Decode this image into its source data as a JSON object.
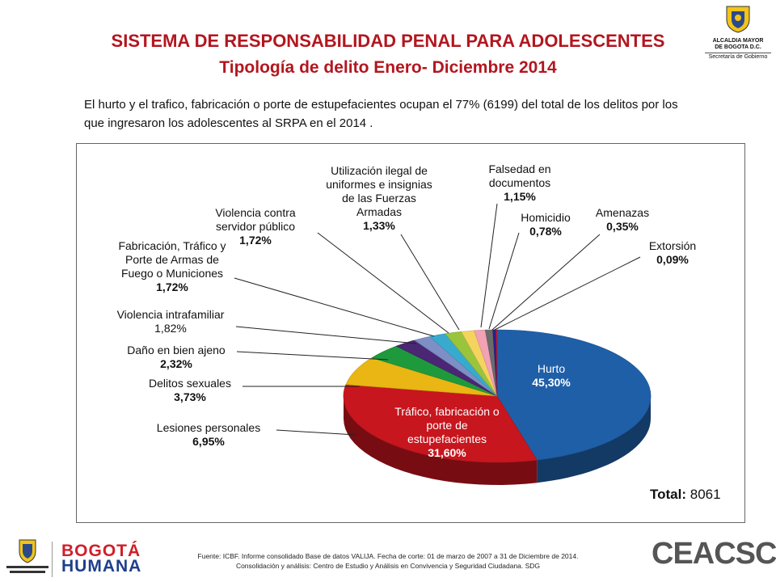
{
  "header": {
    "title": "SISTEMA DE RESPONSABILIDAD PENAL PARA ADOLESCENTES",
    "subtitle": "Tipología de delito Enero- Diciembre 2014",
    "logo_line1": "ALCALDIA MAYOR",
    "logo_line2": "DE BOGOTA D.C.",
    "logo_line3": "Secretaría de Gobierno"
  },
  "description": "El hurto y el trafico, fabricación o porte de estupefacientes ocupan el 77% (6199) del total de los delitos por los que ingresaron los adolescentes al SRPA en el 2014 .",
  "chart_data": {
    "type": "pie",
    "total_label": "Total:",
    "total_value": "8061",
    "slices": [
      {
        "name": "Hurto",
        "value": 45.3,
        "label": "45,30%",
        "color": "#1f5fa8"
      },
      {
        "name": "Tráfico, fabricación o porte de estupefacientes",
        "value": 31.6,
        "label": "31,60%",
        "color": "#c7161e"
      },
      {
        "name": "Lesiones personales",
        "value": 6.95,
        "label": "6,95%",
        "color": "#e9b613"
      },
      {
        "name": "Delitos sexuales",
        "value": 3.73,
        "label": "3,73%",
        "color": "#1e9a3c"
      },
      {
        "name": "Daño en bien ajeno",
        "value": 2.32,
        "label": "2,32%",
        "color": "#4a2675"
      },
      {
        "name": "Violencia intrafamiliar",
        "value": 1.82,
        "label": "1,82%",
        "color": "#7d8fc4"
      },
      {
        "name": "Fabricación, Tráfico y Porte de Armas de Fuego o Municiones",
        "value": 1.72,
        "label": "1,72%",
        "color": "#39aacf"
      },
      {
        "name": "Violencia contra servidor público",
        "value": 1.72,
        "label": "1,72%",
        "color": "#99c43c"
      },
      {
        "name": "Utilización ilegal de uniformes e insignias de las Fuerzas Armadas",
        "value": 1.33,
        "label": "1,33%",
        "color": "#f4d45e"
      },
      {
        "name": "Falsedad en documentos",
        "value": 1.15,
        "label": "1,15%",
        "color": "#f2a2b3"
      },
      {
        "name": "Homicidio",
        "value": 0.78,
        "label": "0,78%",
        "color": "#6b6b6b"
      },
      {
        "name": "Amenazas",
        "value": 0.35,
        "label": "0,35%",
        "color": "#2d1f8c"
      },
      {
        "name": "Extorsión",
        "value": 0.09,
        "label": "0,09%",
        "color": "#d81c2a"
      }
    ],
    "labels": {
      "hurto": [
        "Hurto",
        "45,30%"
      ],
      "trafico": [
        "Tráfico, fabricación o",
        "porte de",
        "estupefacientes",
        "31,60%"
      ],
      "lesiones": [
        "Lesiones personales",
        "6,95%"
      ],
      "sexuales": [
        "Delitos sexuales",
        "3,73%"
      ],
      "dano": [
        "Daño en bien ajeno",
        "2,32%"
      ],
      "violencia_intra": [
        "Violencia intrafamiliar",
        "1,82%"
      ],
      "armas": [
        "Fabricación, Tráfico y",
        "Porte de Armas de",
        "Fuego o Municiones",
        "1,72%"
      ],
      "servidor": [
        "Violencia contra",
        "servidor público",
        "1,72%"
      ],
      "uniformes": [
        "Utilización ilegal de",
        "uniformes e insignias",
        "de las Fuerzas",
        "Armadas",
        "1,33%"
      ],
      "falsedad": [
        "Falsedad en",
        "documentos",
        "1,15%"
      ],
      "homicidio": [
        "Homicidio",
        "0,78%"
      ],
      "amenazas": [
        "Amenazas",
        "0,35%"
      ],
      "extorsion": [
        "Extorsión",
        "0,09%"
      ]
    }
  },
  "footer": {
    "line1": "Fuente: ICBF. Informe consolidado Base de datos VALIJA. Fecha de corte: 01 de marzo de 2007 a 31 de Diciembre de 2014.",
    "line2": "Consolidación y análisis: Centro de Estudio y Análisis en Convivencia y Seguridad Ciudadana. SDG"
  },
  "logos": {
    "bogota_line1": "BOGOTÁ",
    "bogota_line2": "HUMANA",
    "eacsc": "CEACSC"
  }
}
